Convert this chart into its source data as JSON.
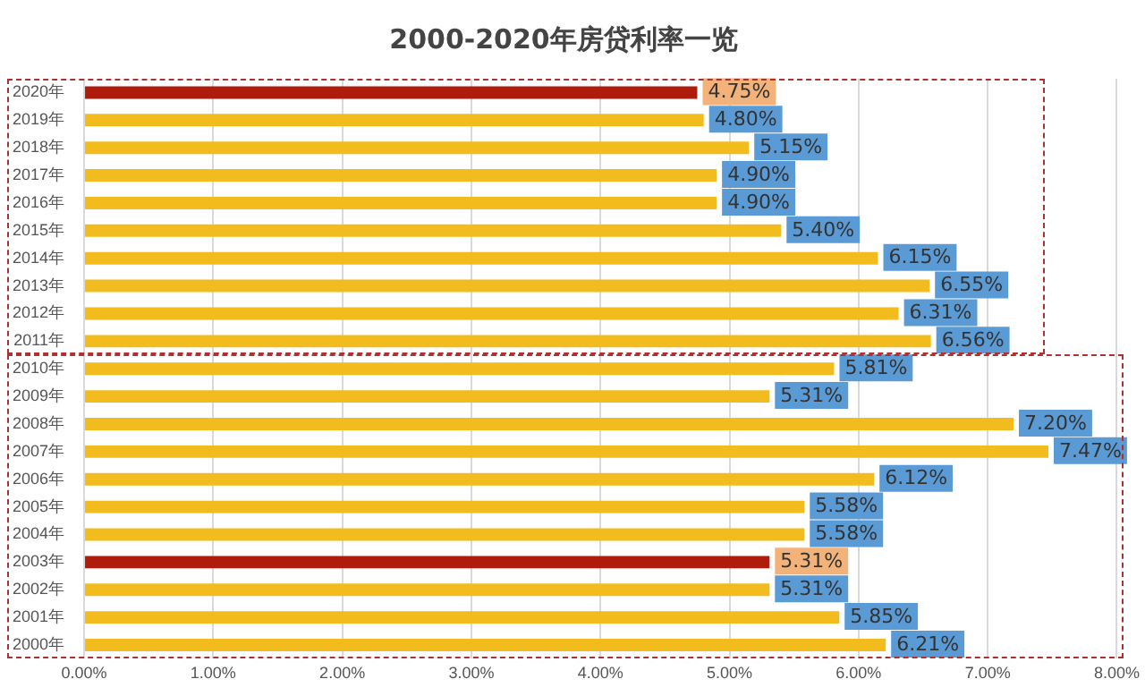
{
  "chart_data": {
    "type": "bar",
    "orientation": "horizontal",
    "title": "2000-2020年房贷利率一览",
    "categories": [
      "2020年",
      "2019年",
      "2018年",
      "2017年",
      "2016年",
      "2015年",
      "2014年",
      "2013年",
      "2012年",
      "2011年",
      "2010年",
      "2009年",
      "2008年",
      "2007年",
      "2006年",
      "2005年",
      "2004年",
      "2003年",
      "2002年",
      "2001年",
      "2000年"
    ],
    "values": [
      4.75,
      4.8,
      5.15,
      4.9,
      4.9,
      5.4,
      6.15,
      6.55,
      6.31,
      6.56,
      5.81,
      5.31,
      7.2,
      7.47,
      6.12,
      5.58,
      5.58,
      5.31,
      5.31,
      5.85,
      6.21
    ],
    "value_labels": [
      "4.75%",
      "4.80%",
      "5.15%",
      "4.90%",
      "4.90%",
      "5.40%",
      "6.15%",
      "6.55%",
      "6.31%",
      "6.56%",
      "5.81%",
      "5.31%",
      "7.20%",
      "7.47%",
      "6.12%",
      "5.58%",
      "5.58%",
      "5.31%",
      "5.31%",
      "5.85%",
      "6.21%"
    ],
    "colors": [
      "#b01c0c",
      "#f2bc1e",
      "#f2bc1e",
      "#f2bc1e",
      "#f2bc1e",
      "#f2bc1e",
      "#f2bc1e",
      "#f2bc1e",
      "#f2bc1e",
      "#f2bc1e",
      "#f2bc1e",
      "#f2bc1e",
      "#f2bc1e",
      "#f2bc1e",
      "#f2bc1e",
      "#f2bc1e",
      "#f2bc1e",
      "#b01c0c",
      "#f2bc1e",
      "#f2bc1e",
      "#f2bc1e"
    ],
    "xlim": [
      0,
      8
    ],
    "xticks": [
      {
        "value": 0,
        "label": "0.00%"
      },
      {
        "value": 1,
        "label": "1.00%"
      },
      {
        "value": 2,
        "label": "2.00%"
      },
      {
        "value": 3,
        "label": "3.00%"
      },
      {
        "value": 4,
        "label": "4.00%"
      },
      {
        "value": 5,
        "label": "5.00%"
      },
      {
        "value": 6,
        "label": "6.00%"
      },
      {
        "value": 7,
        "label": "7.00%"
      },
      {
        "value": 8,
        "label": "8.00%"
      }
    ],
    "grid": "x"
  }
}
